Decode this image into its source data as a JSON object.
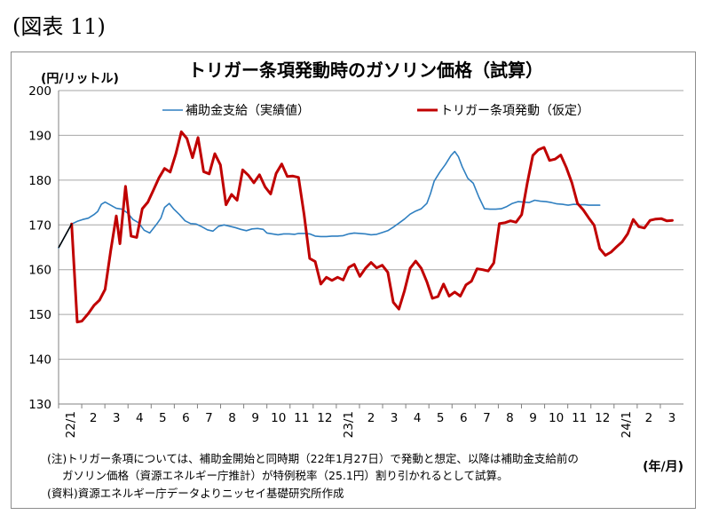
{
  "figure_label": "(図表 11)",
  "chart_data": {
    "type": "line",
    "title": "トリガー条項発動時のガソリン価格（試算）",
    "ylabel": "(円/リットル)",
    "xlabel": "(年/月)",
    "ylim": [
      130,
      200
    ],
    "yticks": [
      130,
      140,
      150,
      160,
      170,
      180,
      190,
      200
    ],
    "grid": true,
    "legend_position": "top",
    "x_tick_labels": [
      "22/1",
      "2",
      "3",
      "4",
      "5",
      "6",
      "7",
      "8",
      "9",
      "10",
      "11",
      "12",
      "23/1",
      "2",
      "3",
      "4",
      "5",
      "6",
      "7",
      "8",
      "9",
      "10",
      "11",
      "12",
      "24/1",
      "2",
      "3"
    ],
    "series": [
      {
        "name": "補助金支給（実績値）",
        "color": "#2f7fc0",
        "points": [
          [
            0,
            164.9
          ],
          [
            0.7,
            170.2
          ],
          [
            1,
            170.8
          ],
          [
            1.3,
            171.2
          ],
          [
            1.6,
            171.5
          ],
          [
            1.9,
            172.3
          ],
          [
            2.1,
            173.0
          ],
          [
            2.3,
            174.6
          ],
          [
            2.5,
            175.1
          ],
          [
            2.8,
            174.4
          ],
          [
            3.1,
            173.7
          ],
          [
            3.4,
            173.5
          ],
          [
            3.7,
            172.7
          ],
          [
            4.0,
            171.2
          ],
          [
            4.3,
            170.5
          ],
          [
            4.6,
            168.8
          ],
          [
            4.9,
            168.2
          ],
          [
            5.3,
            170.3
          ],
          [
            5.5,
            171.5
          ],
          [
            5.7,
            173.9
          ],
          [
            5.95,
            174.8
          ],
          [
            6.2,
            173.5
          ],
          [
            6.5,
            172.3
          ],
          [
            6.8,
            170.9
          ],
          [
            7.1,
            170.3
          ],
          [
            7.4,
            170.2
          ],
          [
            7.7,
            169.6
          ],
          [
            8.0,
            168.9
          ],
          [
            8.3,
            168.6
          ],
          [
            8.6,
            169.7
          ],
          [
            8.9,
            170.0
          ],
          [
            9.2,
            169.7
          ],
          [
            9.5,
            169.4
          ],
          [
            9.8,
            169.0
          ],
          [
            10.1,
            168.7
          ],
          [
            10.4,
            169.1
          ],
          [
            10.7,
            169.2
          ],
          [
            11.0,
            169.0
          ],
          [
            11.2,
            168.2
          ],
          [
            11.5,
            168.0
          ],
          [
            11.8,
            167.8
          ],
          [
            12.1,
            168.0
          ],
          [
            12.4,
            168.0
          ],
          [
            12.7,
            167.9
          ],
          [
            12.9,
            168.1
          ],
          [
            13.2,
            168.1
          ],
          [
            13.5,
            168.0
          ],
          [
            13.8,
            167.5
          ],
          [
            14.1,
            167.4
          ],
          [
            14.4,
            167.4
          ],
          [
            14.7,
            167.5
          ],
          [
            15.0,
            167.5
          ],
          [
            15.3,
            167.6
          ],
          [
            15.6,
            168.0
          ],
          [
            15.9,
            168.2
          ],
          [
            16.2,
            168.1
          ],
          [
            16.5,
            168.0
          ],
          [
            16.8,
            167.8
          ],
          [
            17.1,
            167.9
          ],
          [
            17.4,
            168.3
          ],
          [
            17.7,
            168.7
          ],
          [
            18.0,
            169.5
          ],
          [
            18.3,
            170.4
          ],
          [
            18.6,
            171.3
          ],
          [
            18.9,
            172.4
          ],
          [
            19.2,
            173.1
          ],
          [
            19.5,
            173.6
          ],
          [
            19.8,
            174.8
          ],
          [
            20.0,
            177.0
          ],
          [
            20.2,
            179.8
          ],
          [
            20.5,
            181.8
          ],
          [
            20.8,
            183.5
          ],
          [
            21.1,
            185.5
          ],
          [
            21.3,
            186.4
          ],
          [
            21.5,
            185.2
          ],
          [
            21.7,
            183.0
          ],
          [
            22.0,
            180.4
          ],
          [
            22.3,
            179.3
          ],
          [
            22.6,
            176.2
          ],
          [
            22.9,
            173.6
          ],
          [
            23.2,
            173.5
          ],
          [
            23.5,
            173.5
          ],
          [
            23.8,
            173.6
          ],
          [
            24.1,
            174.1
          ],
          [
            24.4,
            174.8
          ],
          [
            24.7,
            175.2
          ],
          [
            25.0,
            175.1
          ],
          [
            25.3,
            175.0
          ],
          [
            25.6,
            175.5
          ],
          [
            25.9,
            175.3
          ],
          [
            26.2,
            175.2
          ],
          [
            26.5,
            175.0
          ],
          [
            26.8,
            174.7
          ],
          [
            27.1,
            174.6
          ],
          [
            27.4,
            174.4
          ],
          [
            27.7,
            174.6
          ],
          [
            28.0,
            174.5
          ],
          [
            28.3,
            174.5
          ],
          [
            28.5,
            174.4
          ],
          [
            28.8,
            174.4
          ],
          [
            29.1,
            174.4
          ]
        ]
      },
      {
        "name": "トリガー条項発動（仮定）",
        "color": "#c00000",
        "points": [
          [
            0.7,
            170.2
          ],
          [
            1.0,
            148.3
          ],
          [
            1.25,
            148.5
          ],
          [
            1.6,
            150.2
          ],
          [
            1.9,
            152.0
          ],
          [
            2.2,
            153.2
          ],
          [
            2.5,
            155.6
          ],
          [
            2.8,
            164.2
          ],
          [
            3.1,
            172.0
          ],
          [
            3.3,
            165.8
          ],
          [
            3.6,
            178.6
          ],
          [
            3.9,
            167.5
          ],
          [
            4.2,
            167.2
          ],
          [
            4.5,
            173.6
          ],
          [
            4.8,
            175.1
          ],
          [
            5.1,
            177.8
          ],
          [
            5.4,
            180.5
          ],
          [
            5.7,
            182.6
          ],
          [
            6.0,
            181.8
          ],
          [
            6.3,
            185.8
          ],
          [
            6.6,
            190.8
          ],
          [
            6.9,
            189.3
          ],
          [
            7.2,
            185.0
          ],
          [
            7.5,
            189.5
          ],
          [
            7.8,
            181.9
          ],
          [
            8.1,
            181.4
          ],
          [
            8.4,
            185.9
          ],
          [
            8.7,
            183.4
          ],
          [
            9.0,
            174.5
          ],
          [
            9.3,
            176.8
          ],
          [
            9.6,
            175.5
          ],
          [
            9.9,
            182.3
          ],
          [
            10.2,
            181.1
          ],
          [
            10.5,
            179.4
          ],
          [
            10.8,
            181.2
          ],
          [
            11.1,
            178.5
          ],
          [
            11.4,
            176.9
          ],
          [
            11.7,
            181.5
          ],
          [
            12.0,
            183.6
          ],
          [
            12.3,
            180.8
          ],
          [
            12.6,
            180.9
          ],
          [
            12.9,
            180.6
          ],
          [
            13.2,
            172.3
          ],
          [
            13.5,
            162.5
          ],
          [
            13.8,
            161.8
          ],
          [
            14.1,
            156.8
          ],
          [
            14.4,
            158.3
          ],
          [
            14.7,
            157.6
          ],
          [
            15.0,
            158.3
          ],
          [
            15.3,
            157.7
          ],
          [
            15.6,
            160.5
          ],
          [
            15.9,
            161.2
          ],
          [
            16.2,
            158.5
          ],
          [
            16.5,
            160.3
          ],
          [
            16.8,
            161.6
          ],
          [
            17.1,
            160.4
          ],
          [
            17.4,
            161.0
          ],
          [
            17.7,
            159.4
          ],
          [
            18.0,
            152.7
          ],
          [
            18.3,
            151.2
          ],
          [
            18.6,
            155.3
          ],
          [
            18.9,
            160.3
          ],
          [
            19.2,
            161.9
          ],
          [
            19.5,
            160.3
          ],
          [
            19.8,
            157.3
          ],
          [
            20.1,
            153.6
          ],
          [
            20.4,
            154.0
          ],
          [
            20.7,
            156.8
          ],
          [
            21.0,
            154.1
          ],
          [
            21.3,
            155.0
          ],
          [
            21.6,
            154.1
          ],
          [
            21.9,
            156.6
          ],
          [
            22.2,
            157.4
          ],
          [
            22.5,
            160.2
          ],
          [
            22.8,
            160.0
          ],
          [
            23.1,
            159.7
          ],
          [
            23.4,
            161.5
          ],
          [
            23.7,
            170.3
          ],
          [
            24.0,
            170.5
          ],
          [
            24.3,
            170.9
          ],
          [
            24.6,
            170.6
          ],
          [
            24.9,
            172.3
          ],
          [
            25.2,
            179.3
          ],
          [
            25.5,
            185.5
          ],
          [
            25.8,
            186.8
          ],
          [
            26.1,
            187.3
          ],
          [
            26.4,
            184.4
          ],
          [
            26.7,
            184.7
          ],
          [
            27.0,
            185.6
          ],
          [
            27.3,
            182.8
          ],
          [
            27.6,
            179.4
          ],
          [
            27.9,
            174.8
          ],
          [
            28.2,
            173.4
          ],
          [
            28.5,
            171.6
          ],
          [
            28.8,
            169.9
          ],
          [
            29.1,
            164.7
          ],
          [
            29.4,
            163.2
          ],
          [
            29.7,
            163.9
          ],
          [
            30.0,
            165.1
          ],
          [
            30.3,
            166.2
          ],
          [
            30.6,
            168.0
          ],
          [
            30.9,
            171.2
          ],
          [
            31.2,
            169.6
          ],
          [
            31.5,
            169.3
          ],
          [
            31.8,
            171.0
          ],
          [
            32.1,
            171.3
          ],
          [
            32.4,
            171.4
          ],
          [
            32.7,
            170.9
          ],
          [
            33.0,
            171.0
          ]
        ]
      }
    ]
  },
  "notes": [
    "(注)トリガー条項については、補助金開始と同時期（22年1月27日）で発動と想定、以降は補助金支給前の",
    "ガソリン価格（資源エネルギー庁推計）が特例税率（25.1円）割り引かれるとして試算。",
    "(資料)資源エネルギー庁データよりニッセイ基礎研究所作成"
  ]
}
